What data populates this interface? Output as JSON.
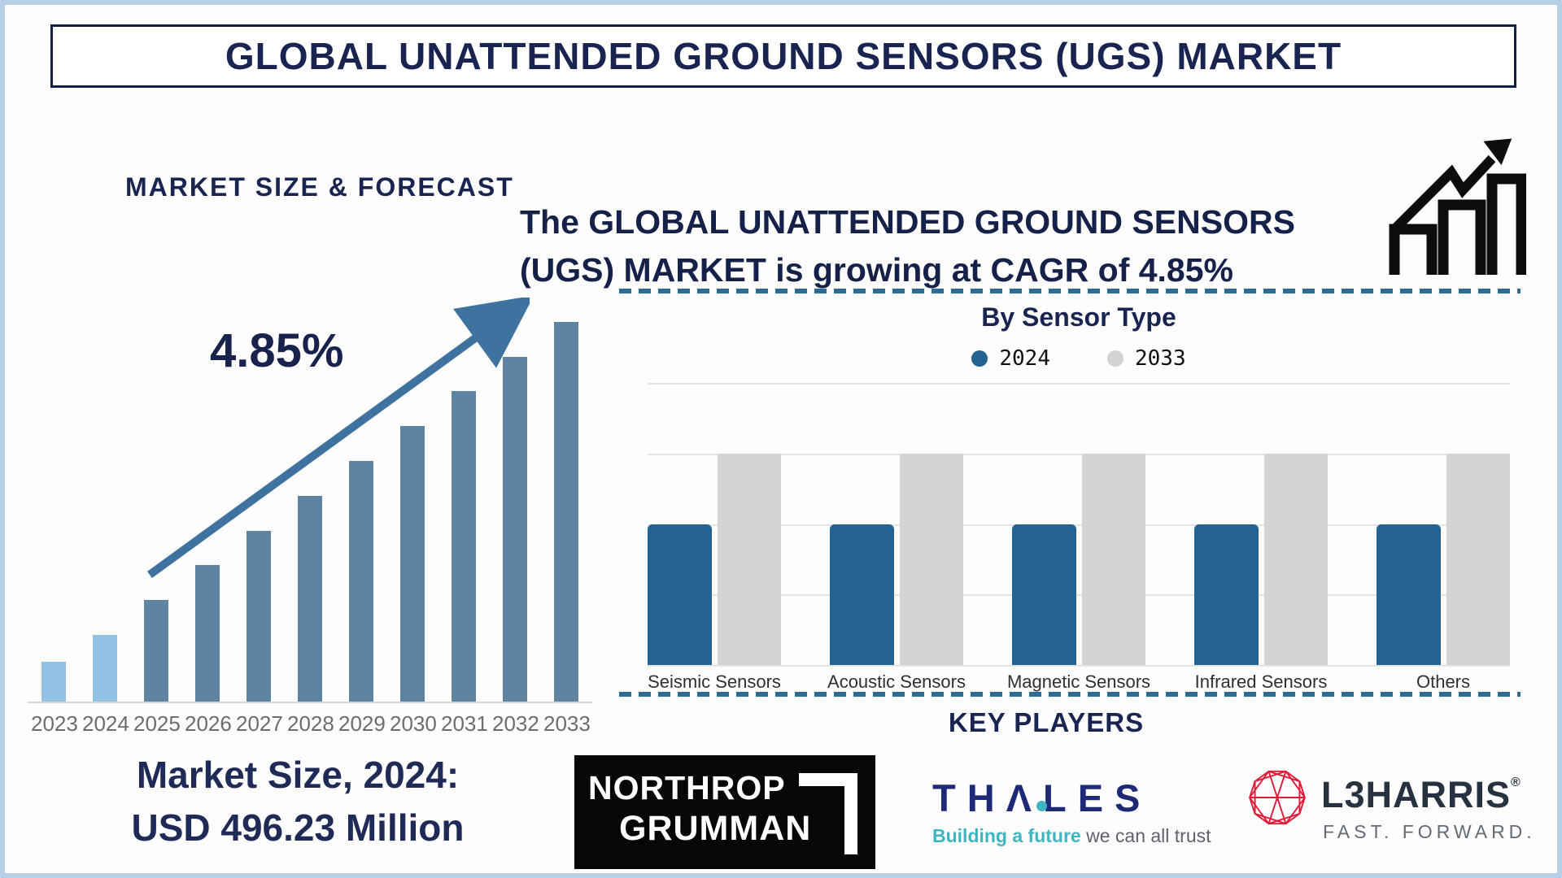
{
  "title": "GLOBAL UNATTENDED GROUND SENSORS (UGS) MARKET",
  "left_panel": {
    "heading": "MARKET SIZE & FORECAST",
    "cagr_label": "4.85%",
    "market_size_line1": "Market Size, 2024:",
    "market_size_line2": "USD 496.23 Million"
  },
  "right_panel": {
    "growth_line1": "The GLOBAL UNATTENDED GROUND SENSORS",
    "growth_line2": "(UGS) MARKET is growing at CAGR of 4.85%",
    "growth_icon": "bar-chart-with-rising-arrow-icon",
    "sensor_chart_title": "By Sensor Type",
    "legend": [
      {
        "label": "2024",
        "color": "#24628f"
      },
      {
        "label": "2033",
        "color": "#d3d3d3"
      }
    ],
    "key_players_heading": "KEY PLAYERS"
  },
  "key_players": [
    {
      "name": "Northrop Grumman",
      "wordmark_line1": "NORTHROP",
      "wordmark_line2": "GRUMMAN"
    },
    {
      "name": "Thales",
      "wordmark": "THΛLES",
      "tagline_teal": "Building a future",
      "tagline_gray": " we can all trust"
    },
    {
      "name": "L3Harris",
      "wordmark": "L3HARRIS",
      "reg_mark": "®",
      "tagline": "FAST. FORWARD."
    }
  ],
  "chart_data": [
    {
      "type": "bar",
      "title": "MARKET SIZE & FORECAST",
      "categories": [
        "2023",
        "2024",
        "2025",
        "2026",
        "2027",
        "2028",
        "2029",
        "2030",
        "2031",
        "2032",
        "2033"
      ],
      "values_relative_pct": [
        10.4,
        17.6,
        26.7,
        35.9,
        45.0,
        54.2,
        63.4,
        72.5,
        81.7,
        90.8,
        100
      ],
      "annotation": "4.85% CAGR trend arrow rising left-to-right",
      "known_values": {
        "2024_market_size_usd_million": 496.23,
        "cagr_pct": 4.85
      },
      "colors": {
        "historical": "#92c1e4",
        "forecast": "#5d84a3",
        "arrow": "#3f729e"
      },
      "historical_bar_count": 2,
      "grid": "off",
      "xlabel": "",
      "ylabel": ""
    },
    {
      "type": "bar",
      "title": "By Sensor Type",
      "categories": [
        "Seismic Sensors",
        "Acoustic Sensors",
        "Magnetic Sensors",
        "Infrared Sensors",
        "Others"
      ],
      "series": [
        {
          "name": "2024",
          "color": "#24628f",
          "values_pct_of_plot": [
            50,
            50,
            50,
            50,
            50
          ]
        },
        {
          "name": "2033",
          "color": "#d3d3d3",
          "values_pct_of_plot": [
            75,
            75,
            75,
            75,
            75
          ]
        }
      ],
      "note": "all categories drawn with equal bar heights; 2033 bars taller than 2024 bars",
      "legend_position": "top",
      "grid": "horizontal",
      "gridline_count": 5
    }
  ],
  "colors": {
    "navy_text": "#1a2450",
    "frame_border": "#b7d0e7",
    "dashed_divider": "#2f6b97",
    "axis_line": "#d8d8d8",
    "year_label": "#6d6d6d"
  }
}
